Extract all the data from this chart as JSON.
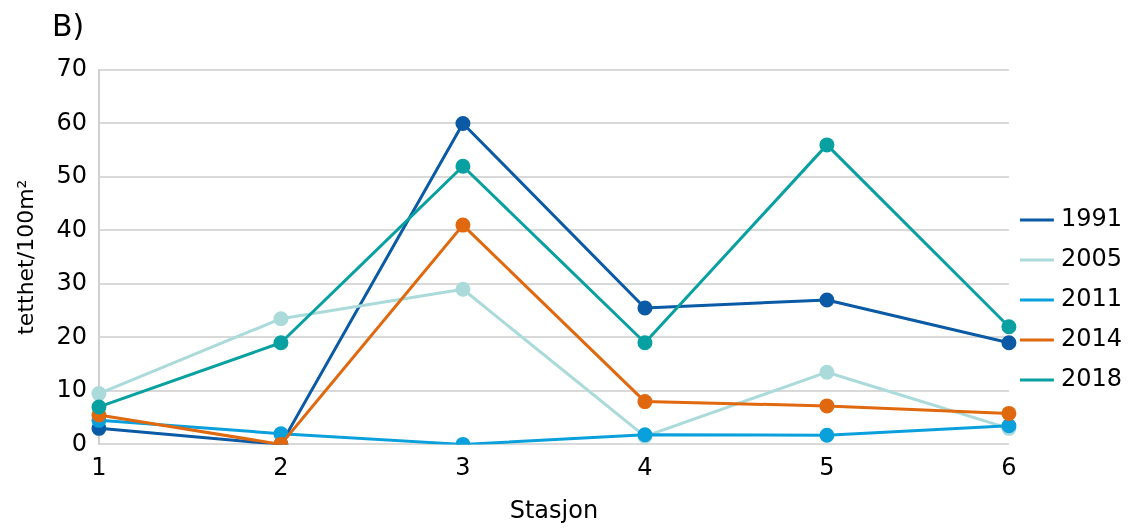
{
  "chart_data": {
    "type": "line",
    "title": "B)",
    "xlabel": "Stasjon",
    "ylabel": "tetthet/100m²",
    "categories": [
      "1",
      "2",
      "3",
      "4",
      "5",
      "6"
    ],
    "series": [
      {
        "name": "1991",
        "color": "#0a5aa5",
        "values": [
          3,
          0,
          60,
          25.5,
          27,
          19
        ]
      },
      {
        "name": "2005",
        "color": "#abdada",
        "values": [
          9.5,
          23.5,
          29,
          1.5,
          13.5,
          3
        ]
      },
      {
        "name": "2011",
        "color": "#0aa0dc",
        "values": [
          4.5,
          2,
          0,
          1.8,
          1.7,
          3.5
        ]
      },
      {
        "name": "2014",
        "color": "#e0680f",
        "values": [
          5.5,
          0,
          41,
          8,
          7.2,
          5.8
        ]
      },
      {
        "name": "2018",
        "color": "#08a0a0",
        "values": [
          7,
          19,
          52,
          19,
          56,
          22
        ]
      }
    ],
    "ylim": [
      0,
      70
    ],
    "yticks": [
      0,
      10,
      20,
      30,
      40,
      50,
      60,
      70
    ],
    "grid": "y",
    "legend": "right",
    "marker": "circle",
    "line_style": "solid"
  }
}
